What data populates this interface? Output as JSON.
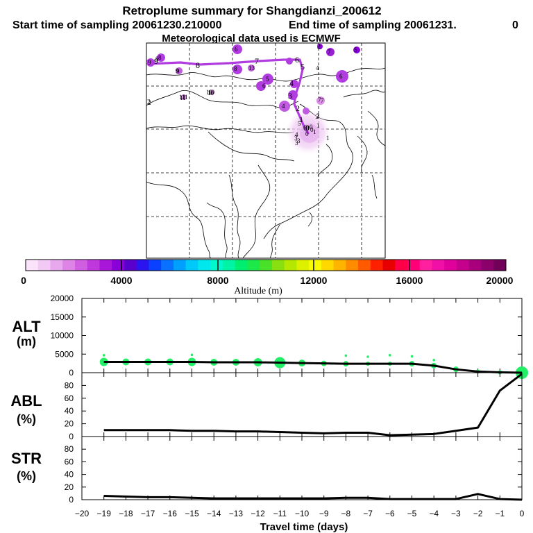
{
  "header": {
    "title": "Retroplume summary for Shangdianzi_200612",
    "start_label": "Start time of sampling 20061230.210000",
    "end_label": "End time of sampling 20061231.",
    "end_value": "0",
    "met_label": "Meteorological data used is ECMWF"
  },
  "colors": {
    "trajectory": "#b13de0",
    "alt_points": "#22ee66",
    "colorbar": [
      "#fbe4fb",
      "#f2c8f4",
      "#e8a8ee",
      "#dd84e6",
      "#cf5ee0",
      "#bf38dc",
      "#a816d8",
      "#8a00d8",
      "#5a00cc",
      "#2a14f0",
      "#0a40ff",
      "#0a70ff",
      "#00a0ff",
      "#00c8f8",
      "#00e8ee",
      "#00f8cc",
      "#00f4a4",
      "#00ee70",
      "#1ce84a",
      "#48e028",
      "#88e010",
      "#b4e800",
      "#dcf000",
      "#fafa00",
      "#ffd800",
      "#ffb400",
      "#ff8c00",
      "#ff5a00",
      "#ff2000",
      "#e80000",
      "#ff0048",
      "#ff0078",
      "#ff20a0",
      "#f010a8",
      "#e0009c",
      "#c4008c",
      "#a8007c",
      "#8c006c",
      "#700058"
    ]
  },
  "map": {
    "trajectory_labels": [
      "9",
      "8",
      "7",
      "6",
      "5",
      "4",
      "3",
      "2",
      "1",
      "0"
    ],
    "scatter_labels": [
      "10",
      "9",
      "8",
      "7",
      "6",
      "5",
      "4",
      "3",
      "2",
      "1",
      "0",
      "11",
      "10",
      "9",
      "8",
      "7",
      "6",
      "5",
      "4",
      "3",
      "2",
      "1",
      "0",
      "12",
      "11",
      "10",
      "9",
      "8",
      "7",
      "6",
      "5",
      "4",
      "3",
      "2",
      "1",
      "0",
      "13",
      "2"
    ],
    "edge_label": "2",
    "source_label": "0"
  },
  "colorbar": {
    "tick_labels": [
      "0",
      "4000",
      "8000",
      "12000",
      "16000",
      "20000"
    ],
    "title": "Altitude (m)"
  },
  "chart_data": {
    "type": "line",
    "x_label": "Travel time (days)",
    "x_ticks": [
      "−20",
      "−19",
      "−18",
      "−17",
      "−16",
      "−15",
      "−14",
      "−13",
      "−12",
      "−11",
      "−10",
      "−9",
      "−8",
      "−7",
      "−6",
      "−5",
      "−4",
      "−3",
      "−2",
      "−1",
      "0"
    ],
    "xlim": [
      -20,
      0
    ],
    "panels": [
      {
        "id": "alt",
        "ylabel_line1": "ALT",
        "ylabel_line2": "(m)",
        "ylim": [
          0,
          20000
        ],
        "yticks": [
          "0",
          "5000",
          "10000",
          "15000",
          "20000"
        ],
        "x": [
          -19,
          -18,
          -17,
          -16,
          -15,
          -14,
          -13,
          -12,
          -11,
          -10,
          -9,
          -8,
          -7,
          -6,
          -5,
          -4,
          -3,
          -2,
          -1,
          0
        ],
        "values": [
          2900,
          2900,
          2900,
          2900,
          2900,
          2800,
          2800,
          2800,
          2700,
          2600,
          2500,
          2400,
          2400,
          2400,
          2400,
          1900,
          900,
          300,
          100,
          0
        ],
        "point_sizes": [
          6,
          5,
          5,
          5,
          6,
          5,
          5,
          6,
          8,
          5,
          4,
          4,
          3,
          3,
          4,
          4,
          4,
          3,
          3,
          9
        ],
        "upper_points": [
          {
            "x": -19,
            "y": 4700
          },
          {
            "x": -15,
            "y": 4800
          },
          {
            "x": -8,
            "y": 4600
          },
          {
            "x": -7,
            "y": 4300
          },
          {
            "x": -6,
            "y": 4700
          },
          {
            "x": -5,
            "y": 4400
          },
          {
            "x": -4,
            "y": 3400
          }
        ]
      },
      {
        "id": "abl",
        "ylabel_line1": "ABL",
        "ylabel_line2": "(%)",
        "ylim": [
          0,
          100
        ],
        "yticks": [
          "0",
          "20",
          "40",
          "60",
          "80"
        ],
        "x": [
          -19,
          -18,
          -17,
          -16,
          -15,
          -14,
          -13,
          -12,
          -11,
          -10,
          -9,
          -8,
          -7,
          -6,
          -5,
          -4,
          -3,
          -2,
          -1,
          0
        ],
        "values": [
          10,
          10,
          10,
          10,
          9,
          9,
          8,
          8,
          7,
          6,
          5,
          6,
          6,
          2,
          3,
          4,
          9,
          14,
          72,
          98
        ]
      },
      {
        "id": "str",
        "ylabel_line1": "STR",
        "ylabel_line2": "(%)",
        "ylim": [
          0,
          100
        ],
        "yticks": [
          "0",
          "20",
          "40",
          "60",
          "80"
        ],
        "x": [
          -19,
          -18,
          -17,
          -16,
          -15,
          -14,
          -13,
          -12,
          -11,
          -10,
          -9,
          -8,
          -7,
          -6,
          -5,
          -4,
          -3,
          -2,
          -1,
          0
        ],
        "values": [
          6,
          5,
          4,
          4,
          3,
          2,
          2,
          2,
          2,
          2,
          2,
          3,
          3,
          1,
          1,
          1,
          1,
          9,
          1,
          0
        ]
      }
    ]
  }
}
